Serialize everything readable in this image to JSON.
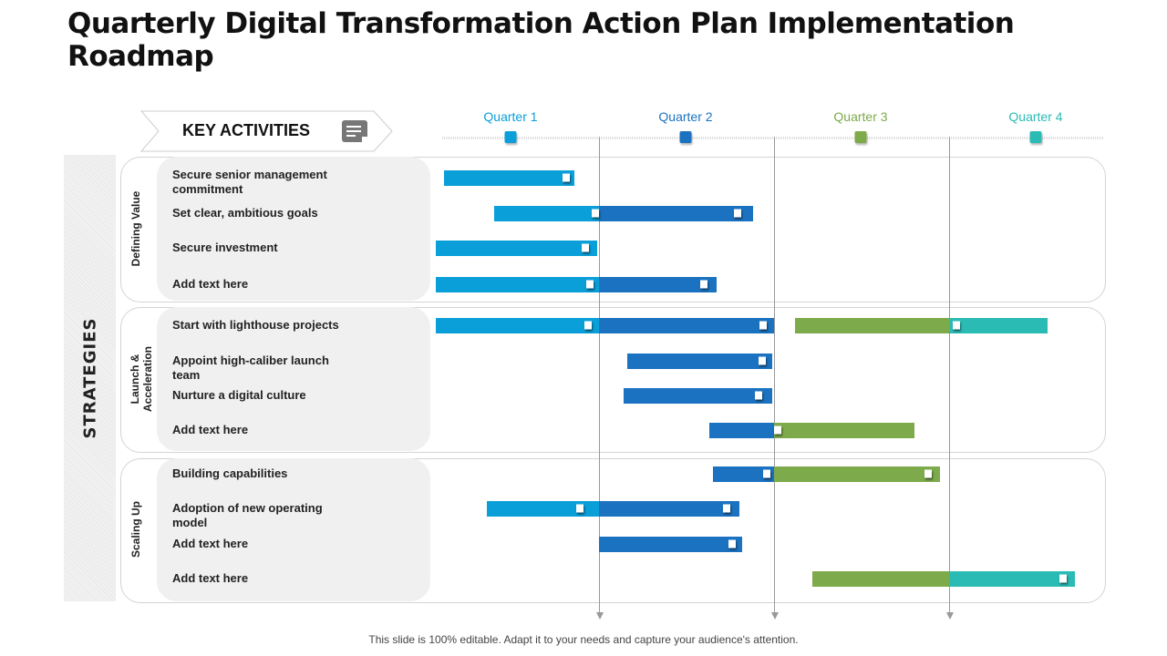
{
  "title": "Quarterly Digital Transformation Action Plan Implementation Roadmap",
  "key_activities": "KEY ACTIVITIES",
  "strategies": "STRATEGIES",
  "colors": {
    "q1": "#0a9fd8",
    "q2": "#1b72c0",
    "q3": "#7daa4a",
    "q4": "#2bbbb5"
  },
  "quarters": [
    {
      "label": "Quarter 1",
      "color": "#0a9fd8"
    },
    {
      "label": "Quarter 2",
      "color": "#1b72c0"
    },
    {
      "label": "Quarter 3",
      "color": "#7daa4a"
    },
    {
      "label": "Quarter 4",
      "color": "#2bbbb5"
    }
  ],
  "groups": [
    {
      "label": "Defining Value"
    },
    {
      "label": "Launch & Acceleration"
    },
    {
      "label": "Scaling Up"
    }
  ],
  "activities": [
    {
      "label": "Secure senior management commitment",
      "segments": [
        [
          0.115,
          0.86,
          0
        ]
      ],
      "markers": [
        0.81
      ]
    },
    {
      "label": "Set clear, ambitious goals",
      "segments": [
        [
          0.4,
          1,
          0
        ],
        [
          1,
          1.88,
          1
        ]
      ],
      "markers": [
        0.98,
        1.79
      ]
    },
    {
      "label": "Secure investment",
      "segments": [
        [
          0.07,
          0.99,
          0
        ]
      ],
      "markers": [
        0.92
      ]
    },
    {
      "label": "Add text here",
      "segments": [
        [
          0.07,
          1,
          0
        ],
        [
          1,
          1.67,
          1
        ]
      ],
      "markers": [
        0.95,
        1.6
      ]
    },
    {
      "label": "Start with lighthouse projects",
      "segments": [
        [
          0.07,
          1,
          0
        ],
        [
          1,
          2,
          1
        ],
        [
          2.12,
          3,
          2
        ],
        [
          3,
          3.56,
          3
        ]
      ],
      "markers": [
        0.94,
        1.94,
        3.04
      ]
    },
    {
      "label": "Appoint high-caliber launch team",
      "segments": [
        [
          1.16,
          1.99,
          1
        ]
      ],
      "markers": [
        1.93
      ]
    },
    {
      "label": "Nurture a digital culture",
      "segments": [
        [
          1.14,
          1.99,
          1
        ]
      ],
      "markers": [
        1.91
      ]
    },
    {
      "label": "Add text here",
      "segments": [
        [
          1.63,
          2,
          1
        ],
        [
          2,
          2.8,
          2
        ]
      ],
      "markers": [
        2.02
      ]
    },
    {
      "label": "Building capabilities",
      "segments": [
        [
          1.65,
          2,
          1
        ],
        [
          2,
          2.95,
          2
        ]
      ],
      "markers": [
        1.96,
        2.88
      ]
    },
    {
      "label": "Adoption of new operating model",
      "segments": [
        [
          0.36,
          1,
          0
        ],
        [
          1,
          1.8,
          1
        ]
      ],
      "markers": [
        0.89,
        1.73
      ]
    },
    {
      "label": "Add text here",
      "segments": [
        [
          1.0,
          1.82,
          1
        ]
      ],
      "markers": [
        1.76
      ]
    },
    {
      "label": "Add text here",
      "segments": [
        [
          2.22,
          3,
          2
        ],
        [
          3,
          3.72,
          3
        ]
      ],
      "markers": [
        3.65
      ]
    }
  ],
  "footer": "This slide is 100% editable. Adapt it to your needs and capture your audience's attention."
}
